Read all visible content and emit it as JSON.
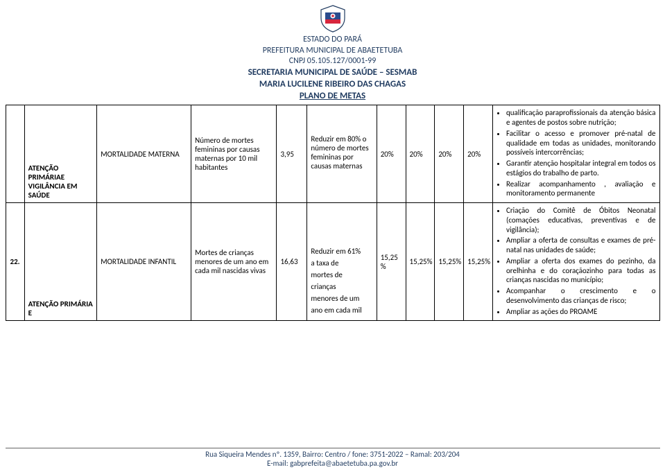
{
  "header": {
    "l1": "ESTADO DO PARÁ",
    "l2": "PREFEITURA MUNICIPAL DE ABAETETUBA",
    "l3": "CNPJ 05.105.127/0001-99",
    "l4": "SECRETARIA MUNICIPAL DE SAÚDE – SESMAB",
    "l5": "MARIA LUCILENE RIBEIRO DAS CHAGAS",
    "l6": "PLANO DE METAS"
  },
  "rows": [
    {
      "num": "",
      "left": "ATENÇÃO PRIMÁRIAE VIGILÂNCIA EM SAÚDE",
      "theme": "MORTALIDADE MATERNA",
      "indicator": "Número de mortes femininas por causas maternas por 10 mil habitantes",
      "value": "3,95",
      "reduce_lines": [
        "Reduzir em 80% o número de mortes femininas por causas maternas"
      ],
      "pcts": [
        "20%",
        "20%",
        "20%",
        "20%"
      ],
      "actions": [
        "qualificação paraprofissionais da atenção básica e agentes de postos sobre nutrição;",
        "Facilitar o acesso e promover pré-natal de qualidade em todas as unidades, monitorando possíveis intercorrências;",
        "Garantir atenção hospitalar integral em todos os estágios do trabalho de parto.",
        "Realizar acompanhamento , avaliação e monitoramento permanente"
      ]
    },
    {
      "num": "22.",
      "left": "ATENÇÃO PRIMÁRIA E",
      "theme": "MORTALIDADE INFANTIL",
      "indicator": "Mortes de crianças menores de um ano em cada mil nascidas vivas",
      "value": "16,63",
      "reduce_lines": [
        "Reduzir em 61%",
        "a taxa de",
        "mortes de",
        "crianças",
        "menores de um",
        "ano em cada mil"
      ],
      "pcts": [
        "15,25%",
        "15,25%",
        "15,25%",
        "15,25%"
      ],
      "actions": [
        "Criação do Comitê de Óbitos Neonatal (comações educativas, preventivas e de vigilância);",
        "Ampliar a oferta de consultas e exames de pré- natal nas unidades de saúde;",
        "Ampliar a oferta dos exames do pezinho, da orelhinha e do coraçãozinho para todas as crianças nascidas no município;",
        "Acompanhar o crescimento e o desenvolvimento das crianças de risco;",
        "Ampliar as ações do PROAME"
      ]
    }
  ],
  "footer": {
    "l1": "Rua Siqueira Mendes nº. 1359, Bairro: Centro / fone: 3751-2022 – Ramal: 203/204",
    "l2": "E-mail: gabprefeita@abaetetuba.pa.gov.br"
  },
  "colors": {
    "header_text": "#1f3a5f",
    "border": "#000000",
    "background": "#ffffff"
  }
}
